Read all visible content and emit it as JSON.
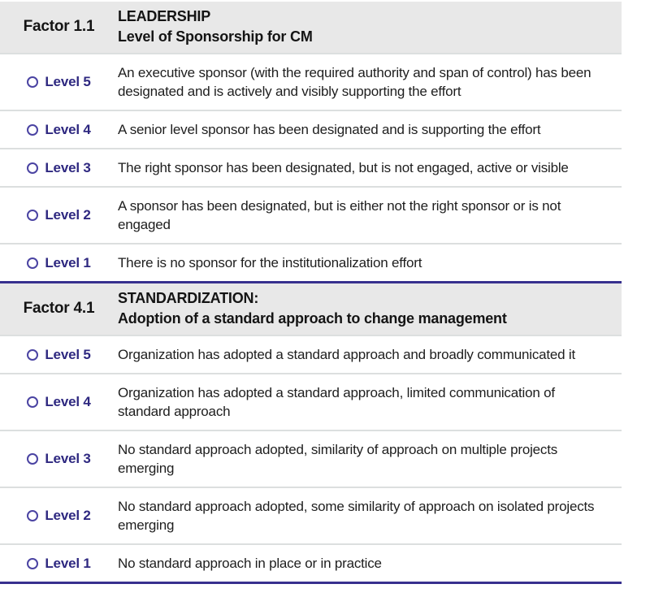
{
  "colors": {
    "header_bg": "#e8e8e8",
    "section_divider": "#37308e",
    "row_divider": "#dcdfdf",
    "level_label_text": "#2e2880",
    "radio_ring": "#4a43a2",
    "body_text": "#1e1e1e"
  },
  "icons": {
    "radio_unselected": "circle-outline"
  },
  "sections": [
    {
      "factor": "Factor 1.1",
      "category": "LEADERSHIP",
      "subtitle": "Level of Sponsorship for CM",
      "levels": [
        {
          "label": "Level 5",
          "selected": false,
          "description": "An executive sponsor (with the required authority and span of control) has been designated and is actively and visibly supporting the effort"
        },
        {
          "label": "Level 4",
          "selected": false,
          "description": "A senior level sponsor has been designated and is supporting the effort"
        },
        {
          "label": "Level 3",
          "selected": false,
          "description": "The right sponsor has been designated, but is not engaged, active or visible"
        },
        {
          "label": "Level 2",
          "selected": false,
          "description": "A sponsor has been designated, but is either not the right sponsor or is not engaged"
        },
        {
          "label": "Level 1",
          "selected": false,
          "description": "There is no sponsor for the institutionalization effort"
        }
      ]
    },
    {
      "factor": "Factor 4.1",
      "category": "STANDARDIZATION:",
      "subtitle": "Adoption of a standard approach to change management",
      "levels": [
        {
          "label": "Level 5",
          "selected": false,
          "description": "Organization has adopted a standard approach and broadly communicated it"
        },
        {
          "label": "Level 4",
          "selected": false,
          "description": "Organization has adopted a standard approach, limited communication of standard approach"
        },
        {
          "label": "Level 3",
          "selected": false,
          "description": "No standard approach adopted, similarity of approach on multiple projects emerging"
        },
        {
          "label": "Level 2",
          "selected": false,
          "description": "No standard approach adopted, some similarity of approach on isolated projects emerging"
        },
        {
          "label": "Level 1",
          "selected": false,
          "description": "No standard approach in place or in practice"
        }
      ]
    }
  ]
}
